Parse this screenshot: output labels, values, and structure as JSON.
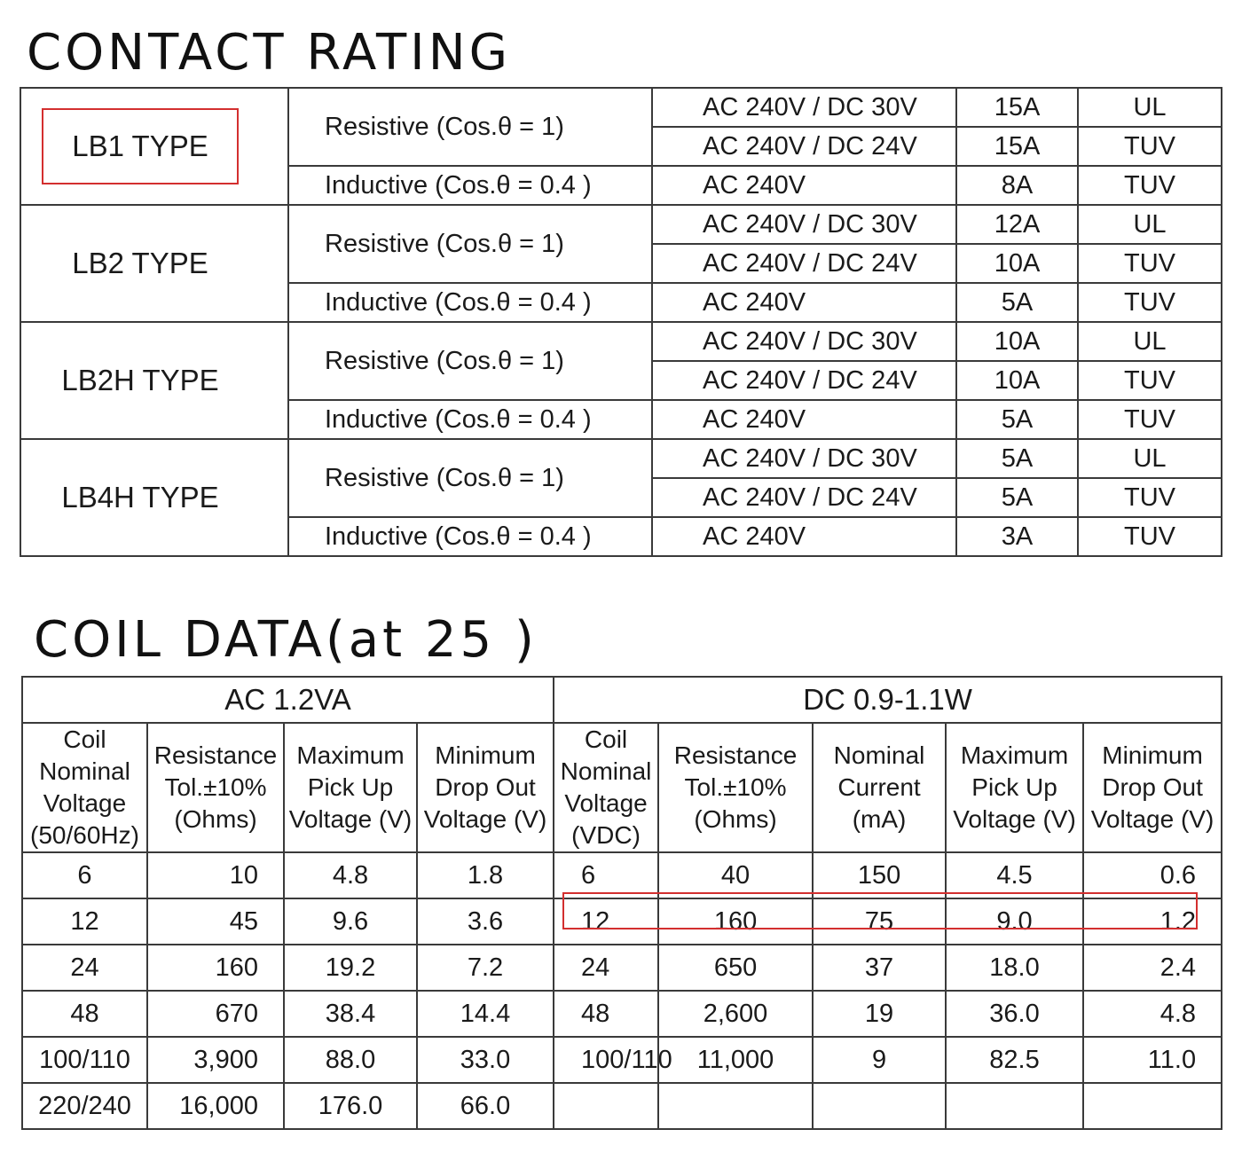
{
  "contact_rating": {
    "title": "CONTACT RATING",
    "groups": [
      {
        "type": "LB1 TYPE",
        "resistive_label": "Resistive (Cos.θ = 1)",
        "inductive_label": "Inductive (Cos.θ = 0.4 )",
        "rows": [
          {
            "voltage": "AC 240V / DC 30V",
            "current": "15A",
            "cert": "UL"
          },
          {
            "voltage": "AC 240V / DC 24V",
            "current": "15A",
            "cert": "TUV"
          },
          {
            "voltage": "AC 240V",
            "current": "8A",
            "cert": "TUV"
          }
        ]
      },
      {
        "type": "LB2 TYPE",
        "resistive_label": "Resistive (Cos.θ = 1)",
        "inductive_label": "Inductive (Cos.θ = 0.4 )",
        "rows": [
          {
            "voltage": "AC 240V / DC 30V",
            "current": "12A",
            "cert": "UL"
          },
          {
            "voltage": "AC 240V / DC 24V",
            "current": "10A",
            "cert": "TUV"
          },
          {
            "voltage": "AC 240V",
            "current": "5A",
            "cert": "TUV"
          }
        ]
      },
      {
        "type": "LB2H TYPE",
        "resistive_label": "Resistive (Cos.θ = 1)",
        "inductive_label": "Inductive (Cos.θ = 0.4 )",
        "rows": [
          {
            "voltage": "AC 240V / DC 30V",
            "current": "10A",
            "cert": "UL"
          },
          {
            "voltage": "AC 240V / DC 24V",
            "current": "10A",
            "cert": "TUV"
          },
          {
            "voltage": "AC 240V",
            "current": "5A",
            "cert": "TUV"
          }
        ]
      },
      {
        "type": "LB4H TYPE",
        "resistive_label": "Resistive (Cos.θ = 1)",
        "inductive_label": "Inductive (Cos.θ = 0.4 )",
        "rows": [
          {
            "voltage": "AC 240V / DC 30V",
            "current": "5A",
            "cert": "UL"
          },
          {
            "voltage": "AC 240V / DC 24V",
            "current": "5A",
            "cert": "TUV"
          },
          {
            "voltage": "AC 240V",
            "current": "3A",
            "cert": "TUV"
          }
        ]
      }
    ]
  },
  "coil_data": {
    "title": "COIL DATA(at 25 )",
    "ac_group": "AC  1.2VA",
    "dc_group": "DC  0.9-1.1W",
    "ac_headers": [
      "Coil Nominal Voltage (50/60Hz)",
      "Resistance Tol.±10% (Ohms)",
      "Maximum Pick Up Voltage (V)",
      "Minimum Drop Out Voltage (V)"
    ],
    "dc_headers": [
      "Coil Nominal Voltage (VDC)",
      "Resistance Tol.±10% (Ohms)",
      "Nominal Current (mA)",
      "Maximum Pick Up Voltage (V)",
      "Minimum Drop Out Voltage (V)"
    ],
    "ac_rows": [
      [
        "6",
        "10",
        "4.8",
        "1.8"
      ],
      [
        "12",
        "45",
        "9.6",
        "3.6"
      ],
      [
        "24",
        "160",
        "19.2",
        "7.2"
      ],
      [
        "48",
        "670",
        "38.4",
        "14.4"
      ],
      [
        "100/110",
        "3,900",
        "88.0",
        "33.0"
      ],
      [
        "220/240",
        "16,000",
        "176.0",
        "66.0"
      ]
    ],
    "dc_rows": [
      [
        "6",
        "40",
        "150",
        "4.5",
        "0.6"
      ],
      [
        "12",
        "160",
        "75",
        "9.0",
        "1.2"
      ],
      [
        "24",
        "650",
        "37",
        "18.0",
        "2.4"
      ],
      [
        "48",
        "2,600",
        "19",
        "36.0",
        "4.8"
      ],
      [
        "100/110",
        "11,000",
        "9",
        "82.5",
        "11.0"
      ],
      [
        "",
        "",
        "",
        "",
        ""
      ]
    ]
  },
  "highlight_color": "#d32f2f"
}
